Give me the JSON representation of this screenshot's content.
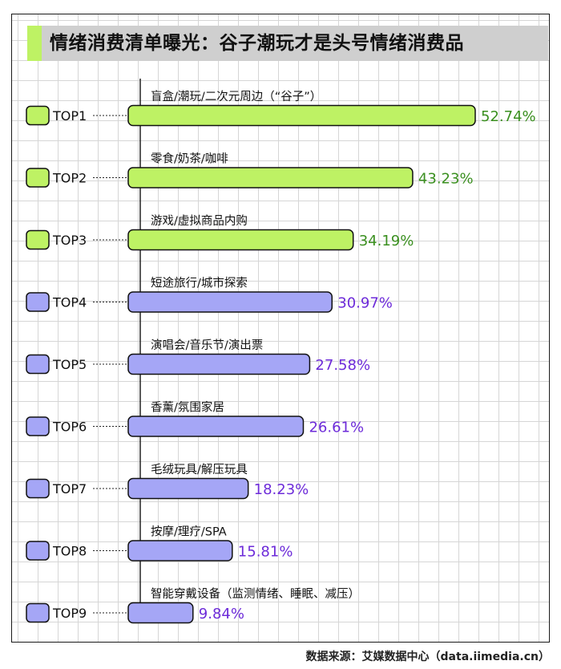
{
  "title": "情绪消费清单曝光：谷子潮玩才是头号情绪消费品",
  "source": "数据来源：艾媒数据中心（data.iimedia.cn）",
  "colors": {
    "top_bar": "#bef264",
    "other_bar": "#a5a6f6",
    "top_value": "#3a8f1f",
    "other_value": "#6d2bd9",
    "outline": "#111111",
    "title_band": "#cfcfcf"
  },
  "chart_data": {
    "type": "bar",
    "orientation": "horizontal",
    "categories": [
      "盲盒/潮玩/二次元周边（“谷子”）",
      "零食/奶茶/咖啡",
      "游戏/虚拟商品内购",
      "短途旅行/城市探索",
      "演唱会/音乐节/演出票",
      "香薰/氛围家居",
      "毛绒玩具/解压玩具",
      "按摩/理疗/SPA",
      "智能穿戴设备（监测情绪、睡眠、减压）"
    ],
    "ranks": [
      "TOP1",
      "TOP2",
      "TOP3",
      "TOP4",
      "TOP5",
      "TOP6",
      "TOP7",
      "TOP8",
      "TOP9"
    ],
    "values": [
      52.74,
      43.23,
      34.19,
      30.97,
      27.58,
      26.61,
      18.23,
      15.81,
      9.84
    ],
    "value_labels": [
      "52.74%",
      "43.23%",
      "34.19%",
      "30.97%",
      "27.58%",
      "26.61%",
      "18.23%",
      "15.81%",
      "9.84%"
    ],
    "unit": "%",
    "highlight_count": 3,
    "xlim": [
      0,
      52.74
    ]
  }
}
